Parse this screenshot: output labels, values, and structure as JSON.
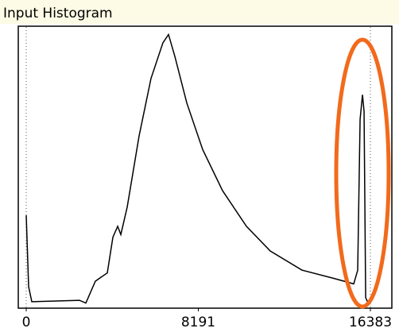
{
  "chart_data": {
    "type": "line",
    "title": "Input Histogram",
    "x": [
      0,
      114,
      265,
      2535,
      2838,
      3292,
      3860,
      4125,
      4352,
      4503,
      4806,
      5373,
      5941,
      6508,
      6773,
      7076,
      7644,
      8400,
      9346,
      10482,
      11617,
      13131,
      14644,
      15590,
      15779,
      15893,
      16007,
      16082,
      16158,
      16271
    ],
    "series": [
      {
        "color": "#000000",
        "values": [
          33,
          7,
          1.5,
          2,
          1,
          9,
          12,
          25,
          29,
          26,
          36,
          62,
          83,
          96,
          99,
          91,
          74,
          57,
          42,
          29,
          20,
          13,
          10,
          8,
          13,
          68,
          77,
          71,
          3,
          1
        ]
      }
    ],
    "xlim": [
      0,
      16383
    ],
    "xticks": [
      0,
      8191,
      16383
    ],
    "ylim": [
      0,
      100
    ]
  }
}
